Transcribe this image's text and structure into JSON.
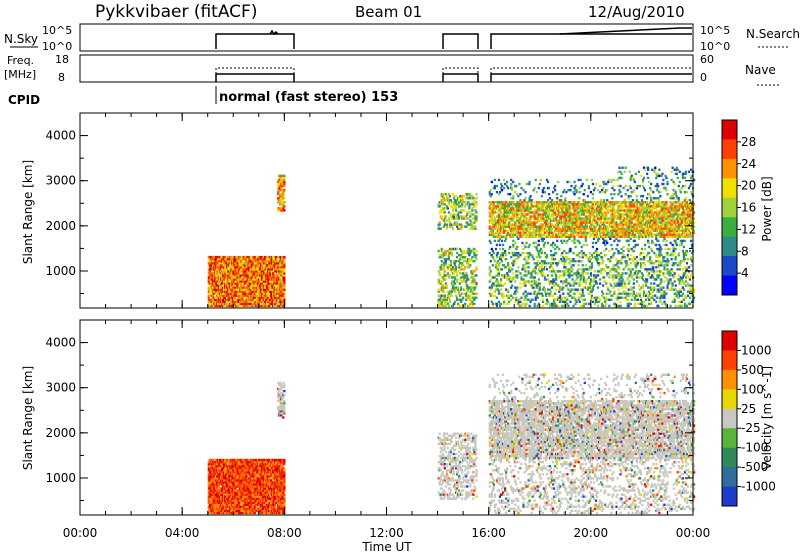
{
  "header": {
    "station": "Pykkvibaer (fitACF)",
    "beam": "Beam 01",
    "date": "12/Aug/2010"
  },
  "top_panels": {
    "nsky_label": "N.Sky",
    "nsky_ticks": [
      "10^5",
      "10^0"
    ],
    "nsearch_label": "N.Search",
    "nsearch_ticks": [
      "10^5",
      "10^0"
    ],
    "freq_label": "Freq.",
    "freq_unit": "[MHz]",
    "freq_ticks": [
      "18",
      "8"
    ],
    "nave_label": "Nave",
    "nave_ticks": [
      "60",
      "0"
    ],
    "cpid_label": "CPID",
    "cpid_text": "normal (fast stereo) 153"
  },
  "chart_data": [
    {
      "type": "heatmap",
      "name": "power",
      "ylabel": "Slant Range [km]",
      "yticks": [
        "1000",
        "2000",
        "3000",
        "4000"
      ],
      "ylim": [
        180,
        4500
      ],
      "colorbar_label": "Power [dB]",
      "colorbar_ticks": [
        "28",
        "24",
        "20",
        "16",
        "12",
        "8",
        "4"
      ],
      "colors": [
        "#0000ff",
        "#1a4ac8",
        "#2f8a8a",
        "#3cae3c",
        "#9fd23c",
        "#f0e000",
        "#ff9000",
        "#ff4000",
        "#e00000"
      ],
      "data_blocks_ut_hours": [
        [
          5,
          8
        ],
        [
          14,
          15.5
        ],
        [
          16,
          24
        ]
      ]
    },
    {
      "type": "heatmap",
      "name": "velocity",
      "ylabel": "Slant Range [km]",
      "yticks": [
        "1000",
        "2000",
        "3000",
        "4000"
      ],
      "ylim": [
        180,
        4500
      ],
      "colorbar_label": "Velocity [m s^-1]",
      "colorbar_ticks": [
        "1000",
        "500",
        "100",
        "25",
        "-25",
        "-100",
        "-500",
        "-1000"
      ],
      "colors": [
        "#1a3cc8",
        "#2f6e9e",
        "#2f8a5a",
        "#5ab43c",
        "#c8c8c0",
        "#e8d800",
        "#ff9000",
        "#ff4000",
        "#e00000"
      ],
      "data_blocks_ut_hours": [
        [
          5,
          8
        ],
        [
          14,
          15.5
        ],
        [
          16,
          24
        ]
      ]
    }
  ],
  "x_axis": {
    "label": "Time UT",
    "ticks": [
      "00:00",
      "04:00",
      "08:00",
      "12:00",
      "16:00",
      "20:00",
      "00:00"
    ],
    "range_hours": [
      0,
      24
    ]
  }
}
